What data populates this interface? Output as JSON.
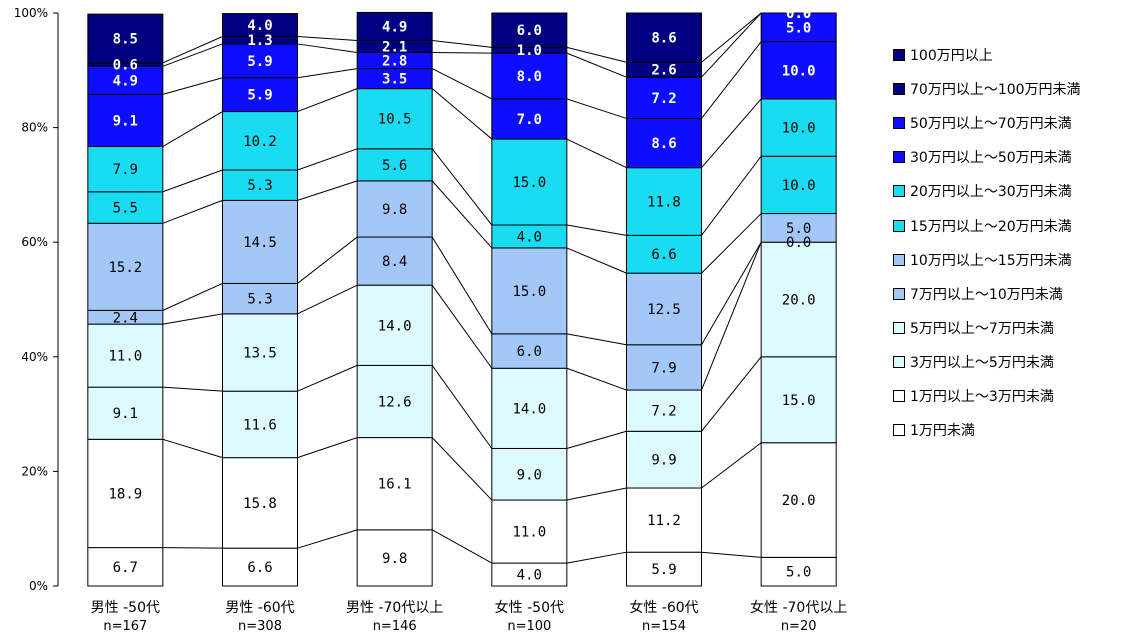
{
  "chart_data": {
    "type": "bar",
    "stacked": true,
    "percent": true,
    "ylim": [
      0,
      100
    ],
    "yticks": [
      "0%",
      "20%",
      "40%",
      "60%",
      "80%",
      "100%"
    ],
    "categories": [
      {
        "name": "男性 -50代",
        "n": "n=167"
      },
      {
        "name": "男性 -60代",
        "n": "n=308"
      },
      {
        "name": "男性 -70代以上",
        "n": "n=146"
      },
      {
        "name": "女性 -50代",
        "n": "n=100"
      },
      {
        "name": "女性 -60代",
        "n": "n=154"
      },
      {
        "name": "女性 -70代以上",
        "n": "n=20"
      }
    ],
    "series": [
      {
        "name": "1万円未満",
        "color": "#ffffff",
        "label_color": "#000000",
        "bold": false,
        "labels": [
          "6.7",
          "6.6",
          "9.8",
          "4.0",
          "5.9",
          "5.0"
        ],
        "values": [
          6.7,
          6.6,
          9.8,
          4.0,
          5.9,
          5.0
        ]
      },
      {
        "name": "1万円以上～3万円未満",
        "color": "#ffffff",
        "label_color": "#000000",
        "bold": false,
        "labels": [
          "18.9",
          "15.8",
          "16.1",
          "11.0",
          "11.2",
          "20.0"
        ],
        "values": [
          18.9,
          15.8,
          16.1,
          11.0,
          11.2,
          20.0
        ]
      },
      {
        "name": "3万円以上～5万円未満",
        "color": "#ddfaff",
        "label_color": "#000000",
        "bold": false,
        "labels": [
          "9.1",
          "11.6",
          "12.6",
          "9.0",
          "9.9",
          "15.0"
        ],
        "values": [
          9.1,
          11.6,
          12.6,
          9.0,
          9.9,
          15.0
        ]
      },
      {
        "name": "5万円以上～7万円未満",
        "color": "#ddfaff",
        "label_color": "#000000",
        "bold": false,
        "labels": [
          "11.0",
          "13.5",
          "14.0",
          "14.0",
          "7.2",
          "20.0"
        ],
        "values": [
          11.0,
          13.5,
          14.0,
          14.0,
          7.2,
          20.0
        ]
      },
      {
        "name": "7万円以上～10万円未満",
        "color": "#a3c8f8",
        "label_color": "#000000",
        "bold": false,
        "labels": [
          "2.4",
          "5.3",
          "8.4",
          "6.0",
          "7.9",
          "0.0"
        ],
        "values": [
          2.4,
          5.3,
          8.4,
          6.0,
          7.9,
          0.0
        ]
      },
      {
        "name": "10万円以上～15万円未満",
        "color": "#a3c8f8",
        "label_color": "#000000",
        "bold": false,
        "labels": [
          "15.2",
          "14.5",
          "9.8",
          "15.0",
          "12.5",
          "5.0"
        ],
        "values": [
          15.2,
          14.5,
          9.8,
          15.0,
          12.5,
          5.0
        ]
      },
      {
        "name": "15万円以上～20万円未満",
        "color": "#19dcf2",
        "label_color": "#000000",
        "bold": false,
        "labels": [
          "5.5",
          "5.3",
          "5.6",
          "4.0",
          "6.6",
          "10.0"
        ],
        "values": [
          5.5,
          5.3,
          5.6,
          4.0,
          6.6,
          10.0
        ]
      },
      {
        "name": "20万円以上～30万円未満",
        "color": "#19dcf2",
        "label_color": "#000000",
        "bold": false,
        "labels": [
          "7.9",
          "10.2",
          "10.5",
          "15.0",
          "11.8",
          "10.0"
        ],
        "values": [
          7.9,
          10.2,
          10.5,
          15.0,
          11.8,
          10.0
        ]
      },
      {
        "name": "30万円以上～50万円未満",
        "color": "#0d0dff",
        "label_color": "#ffffff",
        "bold": true,
        "labels": [
          "9.1",
          "5.9",
          "3.5",
          "7.0",
          "8.6",
          "10.0"
        ],
        "values": [
          9.1,
          5.9,
          3.5,
          7.0,
          8.6,
          10.0
        ]
      },
      {
        "name": "50万円以上～70万円未満",
        "color": "#0d0dff",
        "label_color": "#ffffff",
        "bold": true,
        "labels": [
          "4.9",
          "5.9",
          "2.8",
          "8.0",
          "7.2",
          "5.0"
        ],
        "values": [
          4.9,
          5.9,
          2.8,
          8.0,
          7.2,
          5.0
        ]
      },
      {
        "name": "70万円以上～100万円未満",
        "color": "#000080",
        "label_color": "#ffffff",
        "bold": true,
        "labels": [
          "0.6",
          "1.3",
          "2.1",
          "1.0",
          "2.6",
          "0.0"
        ],
        "values": [
          0.6,
          1.3,
          2.1,
          1.0,
          2.6,
          0.0
        ]
      },
      {
        "name": "100万円以上",
        "color": "#000080",
        "label_color": "#ffffff",
        "bold": true,
        "labels": [
          "8.5",
          "4.0",
          "4.9",
          "6.0",
          "8.6",
          "0.0"
        ],
        "values": [
          8.5,
          4.0,
          4.9,
          6.0,
          8.6,
          0.0
        ]
      }
    ],
    "legend_position": "right",
    "connector_lines": true
  }
}
